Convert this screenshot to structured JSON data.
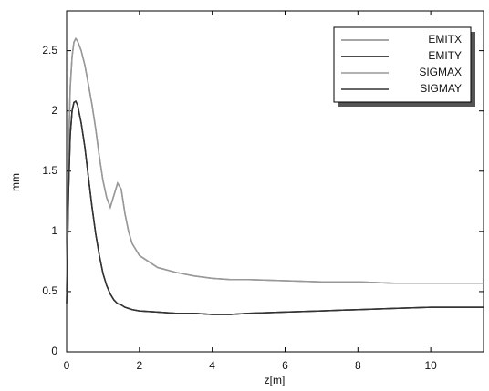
{
  "chart_data": {
    "type": "line",
    "xlabel": "z[m]",
    "ylabel": "mm",
    "x": [
      0,
      0.05,
      0.1,
      0.15,
      0.2,
      0.25,
      0.3,
      0.4,
      0.5,
      0.6,
      0.7,
      0.8,
      0.9,
      1.0,
      1.1,
      1.2,
      1.3,
      1.4,
      1.5,
      1.6,
      1.7,
      1.8,
      2,
      2.5,
      3,
      3.5,
      4,
      4.5,
      5,
      6,
      7,
      8,
      9,
      10,
      11,
      11.45
    ],
    "series": [
      {
        "name": "EMITX",
        "color": "#888888",
        "values": [
          0.5,
          1.6,
          2.2,
          2.45,
          2.57,
          2.6,
          2.58,
          2.5,
          2.38,
          2.22,
          2.05,
          1.85,
          1.62,
          1.42,
          1.28,
          1.2,
          1.3,
          1.4,
          1.35,
          1.15,
          1.0,
          0.9,
          0.8,
          0.7,
          0.66,
          0.63,
          0.61,
          0.6,
          0.6,
          0.59,
          0.58,
          0.58,
          0.57,
          0.57,
          0.57,
          0.57
        ]
      },
      {
        "name": "EMITY",
        "color": "#111111",
        "values": [
          0.4,
          1.3,
          1.8,
          2.0,
          2.07,
          2.08,
          2.05,
          1.9,
          1.7,
          1.45,
          1.2,
          0.98,
          0.8,
          0.65,
          0.55,
          0.48,
          0.43,
          0.4,
          0.39,
          0.37,
          0.36,
          0.35,
          0.34,
          0.33,
          0.32,
          0.32,
          0.31,
          0.31,
          0.32,
          0.33,
          0.34,
          0.35,
          0.36,
          0.37,
          0.37,
          0.37
        ]
      },
      {
        "name": "SIGMAX",
        "color": "#999999",
        "values": [
          0.5,
          1.6,
          2.2,
          2.45,
          2.57,
          2.6,
          2.58,
          2.5,
          2.38,
          2.22,
          2.05,
          1.85,
          1.62,
          1.42,
          1.28,
          1.2,
          1.3,
          1.4,
          1.35,
          1.15,
          1.0,
          0.9,
          0.8,
          0.7,
          0.66,
          0.63,
          0.61,
          0.6,
          0.6,
          0.59,
          0.58,
          0.58,
          0.57,
          0.57,
          0.57,
          0.57
        ]
      },
      {
        "name": "SIGMAY",
        "color": "#333333",
        "values": [
          0.4,
          1.3,
          1.8,
          2.0,
          2.07,
          2.08,
          2.05,
          1.9,
          1.7,
          1.45,
          1.2,
          0.98,
          0.8,
          0.65,
          0.55,
          0.48,
          0.43,
          0.4,
          0.39,
          0.37,
          0.36,
          0.35,
          0.34,
          0.33,
          0.32,
          0.32,
          0.31,
          0.31,
          0.32,
          0.33,
          0.34,
          0.35,
          0.36,
          0.37,
          0.37,
          0.37
        ]
      }
    ],
    "xlim": [
      0,
      11.45
    ],
    "xticks": [
      0,
      2,
      4,
      6,
      8,
      10
    ],
    "ylim": [
      0,
      2.83
    ],
    "yticks": [
      0,
      0.5,
      1,
      1.5,
      2,
      2.5
    ],
    "legend": "upper right"
  }
}
